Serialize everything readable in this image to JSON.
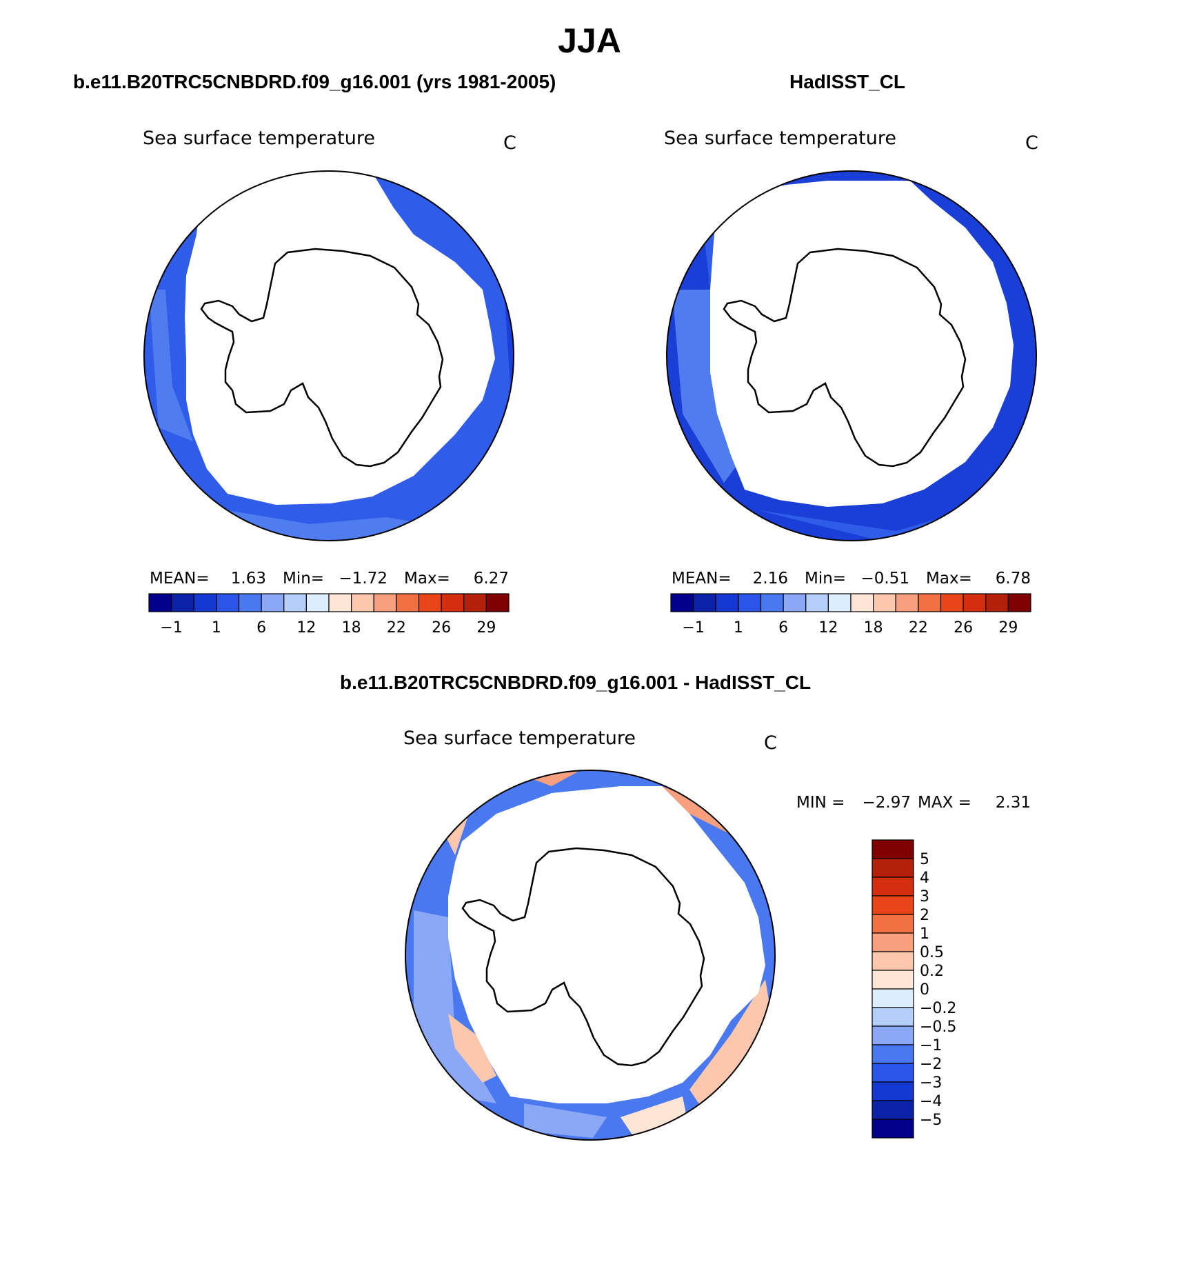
{
  "title": "JJA",
  "panels": [
    {
      "title": "b.e11.B20TRC5CNBDRD.f09_g16.001 (yrs 1981-2005)",
      "variable": "Sea surface temperature",
      "units": "C",
      "stats": {
        "mean_label": "MEAN=",
        "mean": "1.63",
        "min_label": "Min=",
        "min": "−1.72",
        "max_label": "Max=",
        "max": "6.27"
      },
      "colorbar_ticks": [
        "−1",
        "1",
        "6",
        "12",
        "18",
        "22",
        "26",
        "29"
      ]
    },
    {
      "title": "HadISST_CL",
      "variable": "Sea surface temperature",
      "units": "C",
      "stats": {
        "mean_label": "MEAN=",
        "mean": "2.16",
        "min_label": "Min=",
        "min": "−0.51",
        "max_label": "Max=",
        "max": "6.78"
      },
      "colorbar_ticks": [
        "−1",
        "1",
        "6",
        "12",
        "18",
        "22",
        "26",
        "29"
      ]
    }
  ],
  "difference": {
    "title": "b.e11.B20TRC5CNBDRD.f09_g16.001 - HadISST_CL",
    "variable": "Sea surface temperature",
    "units": "C",
    "stats": {
      "min_label": "MIN =",
      "min": "−2.97",
      "max_label": "MAX =",
      "max": "2.31"
    },
    "colorbar_ticks": [
      "5",
      "4",
      "3",
      "2",
      "1",
      "0.5",
      "0.2",
      "0",
      "−0.2",
      "−0.5",
      "−1",
      "−2",
      "−3",
      "−4",
      "−5"
    ]
  },
  "colors": {
    "abs_scale": [
      "#00008b",
      "#0a22a8",
      "#1438d2",
      "#2a55e8",
      "#4a78ef",
      "#8aa8f6",
      "#b4cefa",
      "#dceefe",
      "#fde6d6",
      "#fbc8ae",
      "#f8a07d",
      "#f27143",
      "#e84618",
      "#d42e0e",
      "#b4210a",
      "#7f0000"
    ],
    "diff_scale": [
      "#00008b",
      "#0a22a8",
      "#1438d2",
      "#2a55e8",
      "#4a78ef",
      "#8aa8f6",
      "#b4cefa",
      "#dceefe",
      "#fde6d6",
      "#fbc8ae",
      "#f8a07d",
      "#f27143",
      "#e84618",
      "#d42e0e",
      "#b4210a",
      "#7f0000"
    ],
    "ocean_dark": "#1a3fd6",
    "ocean_mid": "#2f5ce8",
    "ocean_light": "#4f7cef"
  }
}
